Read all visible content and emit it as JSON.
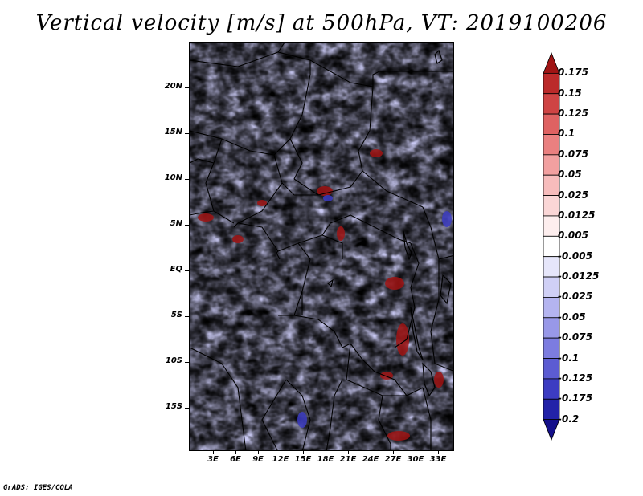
{
  "title": "Vertical velocity [m/s] at 500hPa, VT: 2019100206",
  "credit": "GrADS: IGES/COLA",
  "axes": {
    "lat_labels": [
      "20N",
      "15N",
      "10N",
      "5N",
      "EQ",
      "5S",
      "10S",
      "15S"
    ],
    "lon_labels": [
      "3E",
      "6E",
      "9E",
      "12E",
      "15E",
      "18E",
      "21E",
      "24E",
      "27E",
      "30E",
      "33E"
    ]
  },
  "colorbar": {
    "labels": [
      "0.175",
      "0.15",
      "0.125",
      "0.1",
      "0.075",
      "0.05",
      "0.025",
      "0.0125",
      "0.005",
      "-0.005",
      "-0.0125",
      "-0.025",
      "-0.05",
      "-0.075",
      "-0.1",
      "-0.125",
      "-0.175",
      "-0.2"
    ],
    "colors": [
      "#a01414",
      "#bb2a2a",
      "#cf4444",
      "#df6262",
      "#ea8080",
      "#f2a0a0",
      "#f7bcbc",
      "#fad6d6",
      "#fdeeee",
      "#ffffff",
      "#e6e6fa",
      "#d0d0f6",
      "#b4b4f0",
      "#9898e8",
      "#7c7ce0",
      "#5c5cd2",
      "#3c3cc2",
      "#2222a8",
      "#140f8a"
    ]
  },
  "map_colors": {
    "strong_up": "#a01414",
    "up": "#f08c8c",
    "neutral": "#ffffff",
    "down": "#a8a8ec",
    "strong_down": "#3c3cc2"
  }
}
